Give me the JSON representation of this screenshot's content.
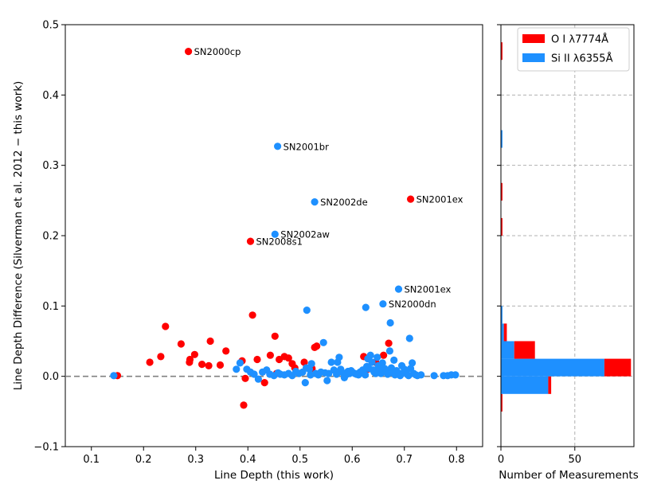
{
  "chart_data": [
    {
      "type": "scatter",
      "xlabel": "Line Depth (this work)",
      "ylabel": "Line Depth Difference (Silverman et al. 2012 − this work)",
      "xlim": [
        0.05,
        0.85
      ],
      "ylim": [
        -0.1,
        0.5
      ],
      "xticks": [
        0.1,
        0.2,
        0.3,
        0.4,
        0.5,
        0.6,
        0.7,
        0.8
      ],
      "xtick_labels": [
        "0.1",
        "0.2",
        "0.3",
        "0.4",
        "0.5",
        "0.6",
        "0.7",
        "0.8"
      ],
      "yticks": [
        -0.1,
        0.0,
        0.1,
        0.2,
        0.3,
        0.4,
        0.5
      ],
      "ytick_labels": [
        "−0.1",
        "0.0",
        "0.1",
        "0.2",
        "0.3",
        "0.4",
        "0.5"
      ],
      "reference_line_y": 0.0,
      "series": [
        {
          "name": "O I λ7774Å",
          "color": "#ff0000",
          "points": [
            [
              0.15,
              0.001
            ],
            [
              0.212,
              0.02
            ],
            [
              0.233,
              0.028
            ],
            [
              0.242,
              0.071
            ],
            [
              0.272,
              0.046
            ],
            [
              0.288,
              0.02
            ],
            [
              0.289,
              0.024
            ],
            [
              0.298,
              0.031
            ],
            [
              0.312,
              0.017
            ],
            [
              0.325,
              0.015
            ],
            [
              0.328,
              0.05
            ],
            [
              0.347,
              0.016
            ],
            [
              0.358,
              0.036
            ],
            [
              0.389,
              0.022
            ],
            [
              0.392,
              -0.041
            ],
            [
              0.395,
              -0.003
            ],
            [
              0.409,
              0.087
            ],
            [
              0.418,
              0.024
            ],
            [
              0.432,
              -0.009
            ],
            [
              0.443,
              0.03
            ],
            [
              0.452,
              0.057
            ],
            [
              0.455,
              0.004
            ],
            [
              0.46,
              0.024
            ],
            [
              0.47,
              0.028
            ],
            [
              0.478,
              0.026
            ],
            [
              0.485,
              0.018
            ],
            [
              0.49,
              0.012
            ],
            [
              0.508,
              0.02
            ],
            [
              0.523,
              0.011
            ],
            [
              0.528,
              0.041
            ],
            [
              0.532,
              0.043
            ],
            [
              0.622,
              0.028
            ],
            [
              0.63,
              0.01
            ],
            [
              0.645,
              0.02
            ],
            [
              0.66,
              0.03
            ],
            [
              0.67,
              0.047
            ],
            [
              0.286,
              0.462
            ],
            [
              0.405,
              0.192
            ],
            [
              0.712,
              0.252
            ]
          ]
        },
        {
          "name": "Si II λ6355Å",
          "color": "#1e90ff",
          "points": [
            [
              0.143,
              0.001
            ],
            [
              0.378,
              0.01
            ],
            [
              0.385,
              0.019
            ],
            [
              0.398,
              0.01
            ],
            [
              0.405,
              0.006
            ],
            [
              0.412,
              0.003
            ],
            [
              0.42,
              -0.004
            ],
            [
              0.428,
              0.006
            ],
            [
              0.436,
              0.009
            ],
            [
              0.442,
              0.003
            ],
            [
              0.45,
              0.001
            ],
            [
              0.458,
              0.005
            ],
            [
              0.462,
              0.003
            ],
            [
              0.47,
              0.002
            ],
            [
              0.478,
              0.004
            ],
            [
              0.485,
              0.001
            ],
            [
              0.492,
              0.007
            ],
            [
              0.498,
              0.004
            ],
            [
              0.505,
              0.006
            ],
            [
              0.51,
              -0.009
            ],
            [
              0.512,
              0.012
            ],
            [
              0.518,
              0.01
            ],
            [
              0.52,
              0.002
            ],
            [
              0.522,
              0.018
            ],
            [
              0.53,
              0.004
            ],
            [
              0.535,
              0.002
            ],
            [
              0.54,
              0.006
            ],
            [
              0.545,
              0.048
            ],
            [
              0.548,
              0.005
            ],
            [
              0.552,
              -0.006
            ],
            [
              0.555,
              0.004
            ],
            [
              0.56,
              0.02
            ],
            [
              0.565,
              0.009
            ],
            [
              0.57,
              0.003
            ],
            [
              0.572,
              0.02
            ],
            [
              0.575,
              0.027
            ],
            [
              0.578,
              0.01
            ],
            [
              0.582,
              0.005
            ],
            [
              0.585,
              -0.002
            ],
            [
              0.59,
              0.003
            ],
            [
              0.592,
              0.007
            ],
            [
              0.595,
              0.004
            ],
            [
              0.598,
              0.008
            ],
            [
              0.6,
              0.006
            ],
            [
              0.605,
              0.004
            ],
            [
              0.608,
              0.003
            ],
            [
              0.612,
              0.002
            ],
            [
              0.615,
              0.006
            ],
            [
              0.618,
              0.005
            ],
            [
              0.62,
              0.009
            ],
            [
              0.622,
              0.004
            ],
            [
              0.625,
              0.002
            ],
            [
              0.628,
              0.014
            ],
            [
              0.63,
              0.025
            ],
            [
              0.632,
              0.011
            ],
            [
              0.635,
              0.03
            ],
            [
              0.638,
              0.02
            ],
            [
              0.64,
              0.009
            ],
            [
              0.642,
              0.006
            ],
            [
              0.645,
              0.004
            ],
            [
              0.648,
              0.027
            ],
            [
              0.65,
              0.015
            ],
            [
              0.652,
              0.008
            ],
            [
              0.655,
              0.004
            ],
            [
              0.658,
              0.019
            ],
            [
              0.662,
              0.011
            ],
            [
              0.665,
              0.006
            ],
            [
              0.668,
              0.003
            ],
            [
              0.672,
              0.036
            ],
            [
              0.675,
              0.012
            ],
            [
              0.678,
              0.005
            ],
            [
              0.68,
              0.023
            ],
            [
              0.682,
              0.002
            ],
            [
              0.685,
              0.008
            ],
            [
              0.69,
              0.004
            ],
            [
              0.692,
              0.001
            ],
            [
              0.695,
              0.015
            ],
            [
              0.7,
              0.01
            ],
            [
              0.702,
              0.006
            ],
            [
              0.705,
              0.003
            ],
            [
              0.708,
              0.001
            ],
            [
              0.71,
              0.054
            ],
            [
              0.712,
              0.011
            ],
            [
              0.715,
              0.019
            ],
            [
              0.718,
              0.004
            ],
            [
              0.722,
              0.002
            ],
            [
              0.725,
              0.001
            ],
            [
              0.732,
              0.002
            ],
            [
              0.757,
              0.001
            ],
            [
              0.775,
              0.001
            ],
            [
              0.783,
              0.001
            ],
            [
              0.79,
              0.002
            ],
            [
              0.798,
              0.002
            ],
            [
              0.52,
              0.002
            ],
            [
              0.513,
              0.094
            ],
            [
              0.626,
              0.098
            ],
            [
              0.673,
              0.076
            ],
            [
              0.457,
              0.327
            ],
            [
              0.528,
              0.248
            ],
            [
              0.452,
              0.202
            ],
            [
              0.689,
              0.124
            ],
            [
              0.659,
              0.103
            ]
          ]
        }
      ],
      "annotations": [
        {
          "text": "SN2000cp",
          "x": 0.286,
          "y": 0.462
        },
        {
          "text": "SN2001br",
          "x": 0.457,
          "y": 0.327
        },
        {
          "text": "SN2002de",
          "x": 0.528,
          "y": 0.248
        },
        {
          "text": "SN2001ex",
          "x": 0.712,
          "y": 0.252
        },
        {
          "text": "SN2002aw",
          "x": 0.452,
          "y": 0.202
        },
        {
          "text": "SN2008s1",
          "x": 0.405,
          "y": 0.192
        },
        {
          "text": "SN2001ex",
          "x": 0.689,
          "y": 0.124
        },
        {
          "text": "SN2000dn",
          "x": 0.659,
          "y": 0.103
        }
      ]
    },
    {
      "type": "bar",
      "orientation": "horizontal",
      "stacked": true,
      "xlabel": "Number of Measurements",
      "xlim": [
        0,
        90
      ],
      "xticks": [
        0,
        50
      ],
      "xtick_labels": [
        "0",
        "50"
      ],
      "ylim": [
        -0.1,
        0.5
      ],
      "bin_edges": [
        -0.05,
        -0.025,
        0.0,
        0.025,
        0.05,
        0.075,
        0.1,
        0.125,
        0.15,
        0.175,
        0.2,
        0.225,
        0.25,
        0.275,
        0.3,
        0.325,
        0.35,
        0.375,
        0.4,
        0.425,
        0.45,
        0.475
      ],
      "series": [
        {
          "name": "Si II λ6355Å",
          "color": "#1e90ff",
          "counts": [
            0,
            32,
            70,
            9,
            2,
            1,
            0,
            0,
            0,
            0,
            0,
            0,
            0,
            0,
            0,
            1,
            0,
            0,
            0,
            0,
            0
          ]
        },
        {
          "name": "O I λ7774Å",
          "color": "#ff0000",
          "counts": [
            1,
            2,
            18,
            14,
            2,
            0,
            0,
            0,
            0,
            0,
            1,
            0,
            1,
            0,
            0,
            0,
            0,
            0,
            0,
            0,
            1
          ]
        }
      ],
      "legend_position": "top-right"
    }
  ]
}
